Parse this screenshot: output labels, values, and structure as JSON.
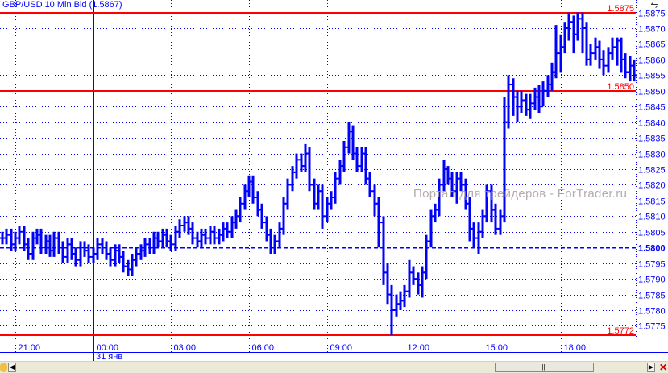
{
  "title": "GBP/USD 10 Min Bid (1.5867)",
  "watermark": "Портал для трейдеров - ForTrader.ru",
  "date_label": "31 янв",
  "colors": {
    "bars": "#0000ff",
    "grid": "#0000ff",
    "levels": "#ff0000",
    "background": "#ffffff"
  },
  "chart_data": {
    "type": "ohlc-bar",
    "instrument": "GBP/USD",
    "timeframe_minutes": 10,
    "first_bar_time": "20:30",
    "ylim": [
      1.5771,
      1.5879
    ],
    "y_ticks": [
      "1.5875",
      "1.5870",
      "1.5865",
      "1.5860",
      "1.5855",
      "1.5850",
      "1.5845",
      "1.5840",
      "1.5835",
      "1.5830",
      "1.5825",
      "1.5820",
      "1.5815",
      "1.5810",
      "1.5805",
      "1.5800",
      "1.5795",
      "1.5790",
      "1.5785",
      "1.5780",
      "1.5775"
    ],
    "x_ticks": [
      {
        "label": "21:00",
        "bar": 3
      },
      {
        "label": "00:00",
        "bar": 21
      },
      {
        "label": "03:00",
        "bar": 39
      },
      {
        "label": "06:00",
        "bar": 57
      },
      {
        "label": "09:00",
        "bar": 75
      },
      {
        "label": "12:00",
        "bar": 93
      },
      {
        "label": "15:00",
        "bar": 111
      },
      {
        "label": "18:00",
        "bar": 129
      }
    ],
    "day_separator_bar": 21,
    "highlighted_level": "1.5800",
    "levels": [
      {
        "label": "1.5875",
        "value": 1.5875
      },
      {
        "label": "1.5850",
        "value": 1.585
      },
      {
        "label": "1.5772",
        "value": 1.5772
      }
    ],
    "grid": true,
    "close": [
      1.5803,
      1.5804,
      1.5801,
      1.5803,
      1.5805,
      1.5801,
      1.5798,
      1.5803,
      1.5804,
      1.58,
      1.5802,
      1.5799,
      1.5803,
      1.58,
      1.5797,
      1.5801,
      1.5798,
      1.5796,
      1.58,
      1.5799,
      1.5797,
      1.5798,
      1.5801,
      1.58,
      1.5798,
      1.5796,
      1.5799,
      1.5797,
      1.5794,
      1.5793,
      1.5796,
      1.5798,
      1.5799,
      1.5801,
      1.58,
      1.5803,
      1.5802,
      1.5804,
      1.5802,
      1.5801,
      1.5805,
      1.5807,
      1.5808,
      1.5806,
      1.5803,
      1.5802,
      1.5804,
      1.5803,
      1.5805,
      1.5803,
      1.5804,
      1.5806,
      1.5805,
      1.5808,
      1.581,
      1.5814,
      1.5818,
      1.5821,
      1.5816,
      1.5812,
      1.5808,
      1.5804,
      1.58,
      1.5802,
      1.5806,
      1.5814,
      1.582,
      1.5824,
      1.5828,
      1.5826,
      1.583,
      1.582,
      1.5814,
      1.5818,
      1.581,
      1.5814,
      1.5816,
      1.5822,
      1.5826,
      1.5832,
      1.5837,
      1.583,
      1.5826,
      1.583,
      1.5822,
      1.5818,
      1.5814,
      1.5808,
      1.5792,
      1.5785,
      1.578,
      1.5782,
      1.5783,
      1.5786,
      1.5792,
      1.579,
      1.5788,
      1.5792,
      1.5802,
      1.581,
      1.5812,
      1.582,
      1.5825,
      1.5822,
      1.5818,
      1.5822,
      1.582,
      1.5814,
      1.5806,
      1.5803,
      1.5805,
      1.581,
      1.5818,
      1.5812,
      1.5806,
      1.581,
      1.584,
      1.5852,
      1.5848,
      1.5845,
      1.5847,
      1.5844,
      1.5846,
      1.5848,
      1.5845,
      1.585,
      1.5852,
      1.5856,
      1.5862,
      1.5864,
      1.587,
      1.5872,
      1.5868,
      1.5873,
      1.587,
      1.586,
      1.5862,
      1.5864,
      1.586,
      1.5858,
      1.5862,
      1.5864,
      1.5866,
      1.586,
      1.5856,
      1.5858,
      1.5855
    ],
    "high": [
      1.5805,
      1.5806,
      1.5806,
      1.5805,
      1.5807,
      1.5807,
      1.5803,
      1.5805,
      1.5806,
      1.5806,
      1.5804,
      1.5804,
      1.5805,
      1.5805,
      1.5802,
      1.5803,
      1.5803,
      1.58,
      1.5802,
      1.5802,
      1.5801,
      1.58,
      1.5803,
      1.5803,
      1.5802,
      1.58,
      1.5801,
      1.5801,
      1.5799,
      1.5796,
      1.5798,
      1.58,
      1.5801,
      1.5803,
      1.5803,
      1.5805,
      1.5805,
      1.5806,
      1.5806,
      1.5804,
      1.5807,
      1.5809,
      1.581,
      1.581,
      1.5808,
      1.5805,
      1.5806,
      1.5806,
      1.5807,
      1.5807,
      1.5806,
      1.5808,
      1.5808,
      1.581,
      1.5812,
      1.5816,
      1.582,
      1.5823,
      1.5823,
      1.5818,
      1.5814,
      1.581,
      1.5806,
      1.5804,
      1.5808,
      1.5816,
      1.5822,
      1.5826,
      1.583,
      1.583,
      1.5833,
      1.5832,
      1.5822,
      1.582,
      1.582,
      1.5816,
      1.5818,
      1.5824,
      1.5828,
      1.5834,
      1.584,
      1.5839,
      1.5832,
      1.5832,
      1.5832,
      1.5824,
      1.582,
      1.5816,
      1.581,
      1.5795,
      1.5788,
      1.5785,
      1.5786,
      1.5788,
      1.5796,
      1.5794,
      1.5792,
      1.5794,
      1.5804,
      1.5812,
      1.5814,
      1.5822,
      1.5828,
      1.5826,
      1.5824,
      1.5824,
      1.5824,
      1.5822,
      1.5816,
      1.5808,
      1.5808,
      1.5812,
      1.582,
      1.582,
      1.5814,
      1.5812,
      1.5848,
      1.5855,
      1.5854,
      1.585,
      1.585,
      1.5849,
      1.5849,
      1.5851,
      1.5852,
      1.5853,
      1.5855,
      1.5859,
      1.5871,
      1.5868,
      1.5872,
      1.5875,
      1.5874,
      1.5875,
      1.5875,
      1.5872,
      1.5865,
      1.5867,
      1.5866,
      1.5863,
      1.5864,
      1.5867,
      1.5867,
      1.5867,
      1.5862,
      1.5861,
      1.586
    ],
    "low": [
      1.5801,
      1.5801,
      1.5799,
      1.5799,
      1.5801,
      1.5799,
      1.5796,
      1.5796,
      1.5801,
      1.5798,
      1.5798,
      1.5797,
      1.5797,
      1.5798,
      1.5795,
      1.5795,
      1.5796,
      1.5794,
      1.5794,
      1.5797,
      1.5795,
      1.5795,
      1.5796,
      1.5798,
      1.5796,
      1.5794,
      1.5794,
      1.5795,
      1.5792,
      1.5791,
      1.5791,
      1.5794,
      1.5796,
      1.5797,
      1.5798,
      1.5798,
      1.58,
      1.58,
      1.58,
      1.5799,
      1.5799,
      1.5803,
      1.5805,
      1.5804,
      1.5801,
      1.58,
      1.58,
      1.5801,
      1.5801,
      1.5801,
      1.5801,
      1.5802,
      1.5803,
      1.5803,
      1.5806,
      1.5808,
      1.5812,
      1.5816,
      1.5814,
      1.581,
      1.5806,
      1.5802,
      1.5798,
      1.5798,
      1.58,
      1.5804,
      1.5812,
      1.5818,
      1.5822,
      1.5824,
      1.5824,
      1.5818,
      1.5812,
      1.5812,
      1.5806,
      1.5808,
      1.5812,
      1.5814,
      1.582,
      1.5824,
      1.583,
      1.5828,
      1.5824,
      1.5824,
      1.582,
      1.5816,
      1.581,
      1.58,
      1.5788,
      1.5782,
      1.5772,
      1.5778,
      1.578,
      1.5781,
      1.5784,
      1.5788,
      1.5785,
      1.5784,
      1.579,
      1.58,
      1.5808,
      1.581,
      1.5818,
      1.582,
      1.5816,
      1.5814,
      1.5818,
      1.5812,
      1.5802,
      1.58,
      1.5798,
      1.5803,
      1.5808,
      1.5808,
      1.5804,
      1.5804,
      1.5808,
      1.5838,
      1.5842,
      1.584,
      1.5843,
      1.5842,
      1.5841,
      1.5844,
      1.5843,
      1.5845,
      1.5848,
      1.585,
      1.5854,
      1.5856,
      1.5862,
      1.5866,
      1.5862,
      1.5866,
      1.5862,
      1.5858,
      1.5858,
      1.586,
      1.5857,
      1.5855,
      1.5856,
      1.586,
      1.5858,
      1.5856,
      1.5854,
      1.5853,
      1.5853
    ]
  }
}
